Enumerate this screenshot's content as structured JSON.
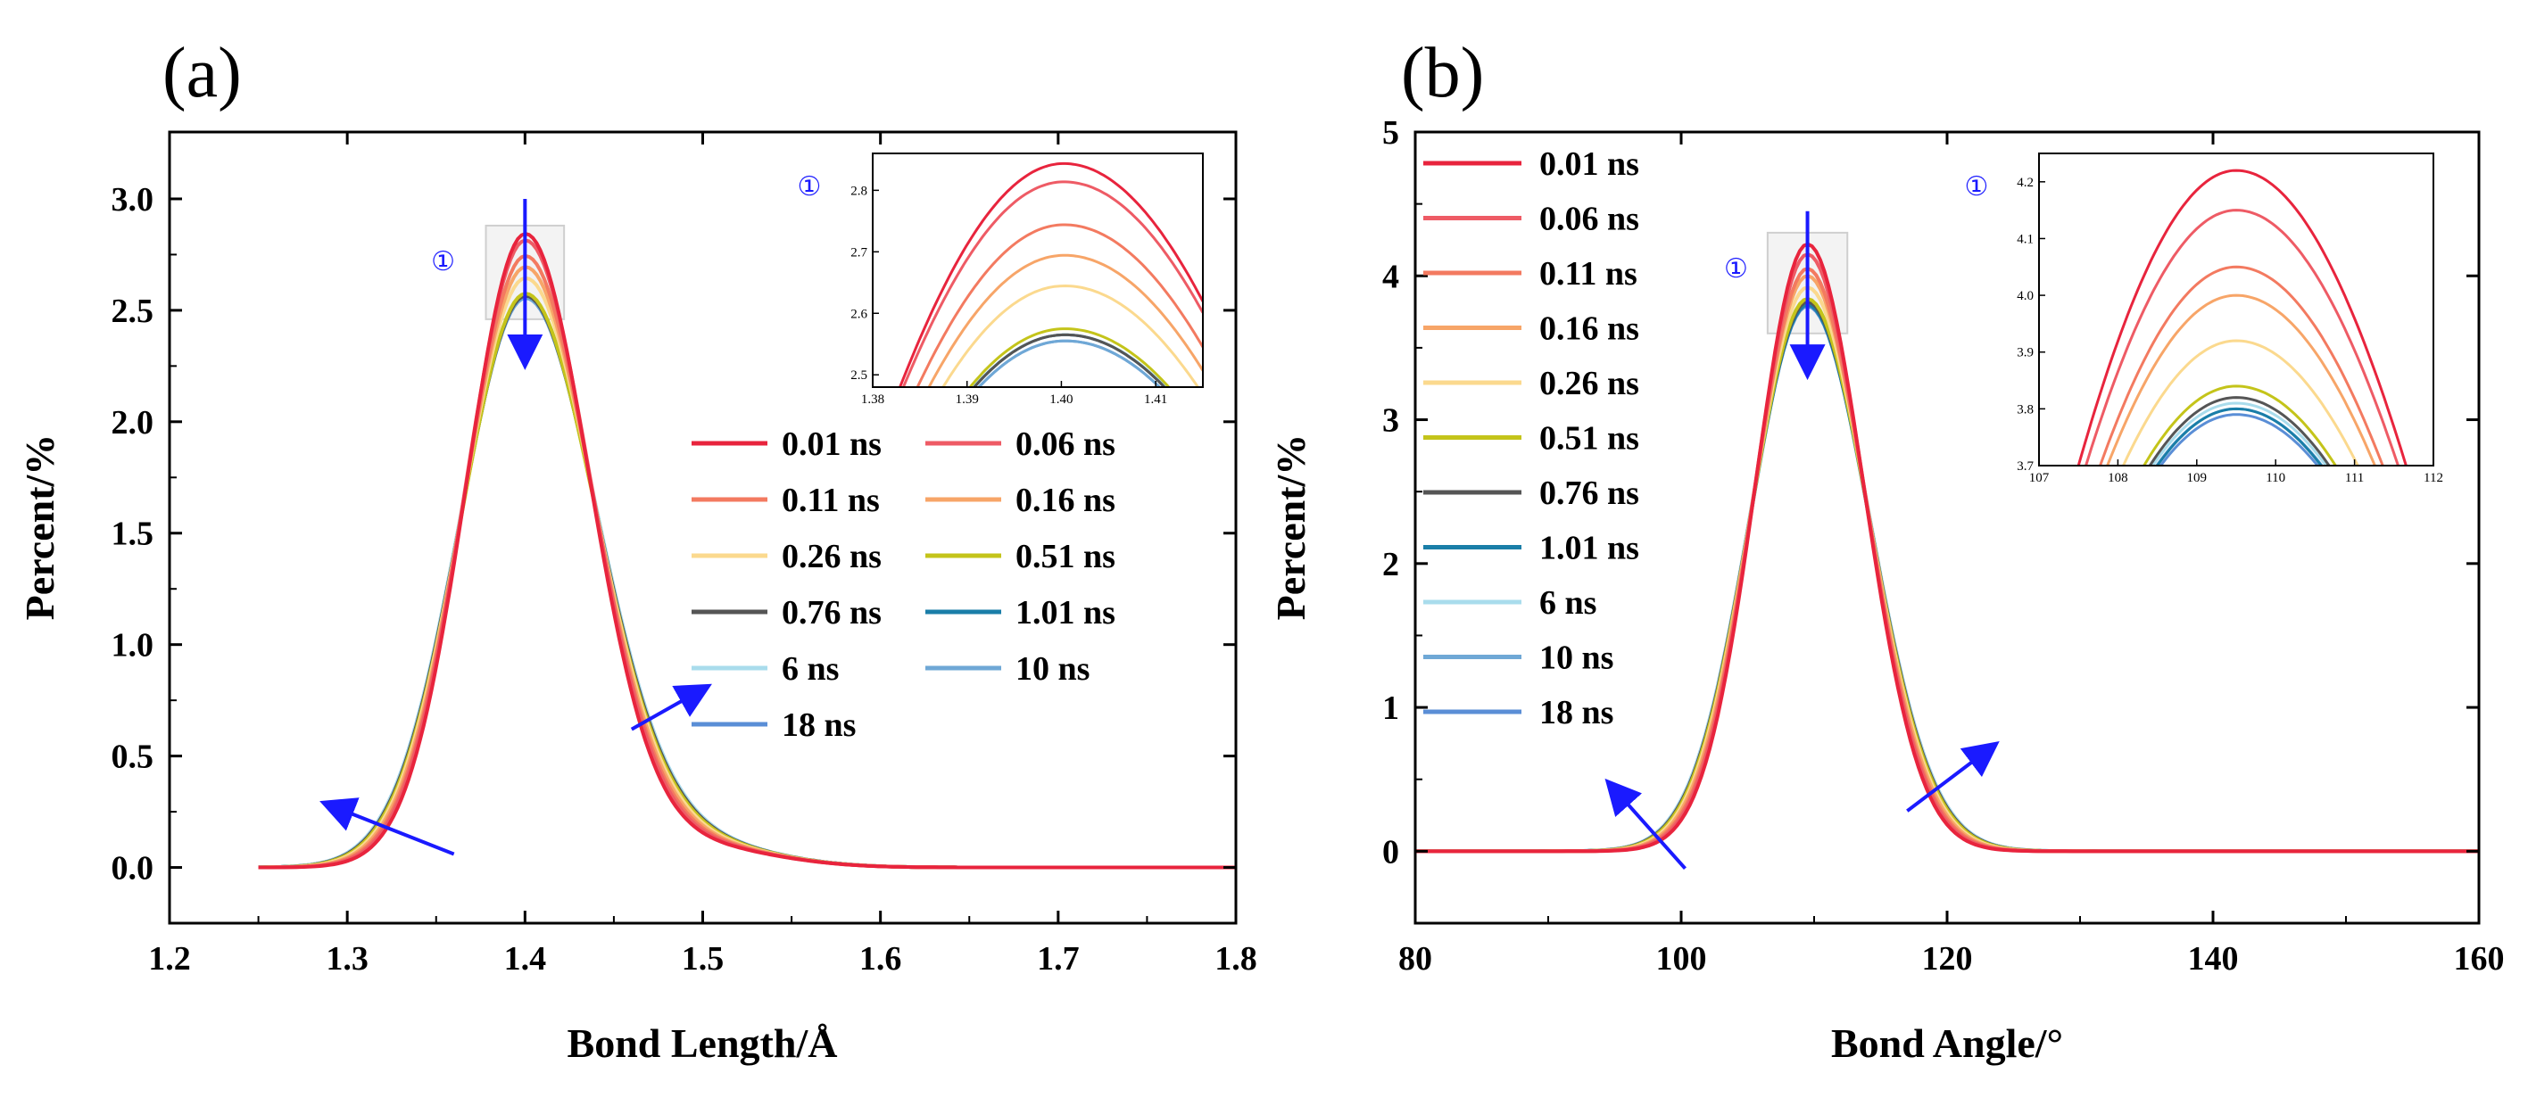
{
  "colors": {
    "arrow": "#1a1aff",
    "highlight": "#cfcfcf"
  },
  "marker_symbol": "①",
  "chart_data": [
    {
      "id": "a",
      "panel_label": "(a)",
      "type": "line",
      "xlabel": "Bond Length/Å",
      "ylabel": "Percent/%",
      "xlim": [
        1.2,
        1.8
      ],
      "ylim": [
        -0.25,
        3.3
      ],
      "xticks": [
        1.2,
        1.3,
        1.4,
        1.5,
        1.6,
        1.7,
        1.8
      ],
      "yticks": [
        0.0,
        0.5,
        1.0,
        1.5,
        2.0,
        2.5,
        3.0
      ],
      "xtick_labels": [
        "1.2",
        "1.3",
        "1.4",
        "1.5",
        "1.6",
        "1.7",
        "1.8"
      ],
      "ytick_labels": [
        "0.0",
        "0.5",
        "1.0",
        "1.5",
        "2.0",
        "2.5",
        "3.0"
      ],
      "x_start": 1.25,
      "peak_x": 1.4,
      "sigma_left": 0.033,
      "sigma_right_base": 0.036,
      "shoulder": [
        0.45,
        1.49,
        0.045
      ],
      "legend_position": "center-right",
      "legend_columns": 2,
      "legend_order": [
        0,
        1,
        2,
        3,
        4,
        5,
        6,
        7,
        8,
        9,
        10
      ],
      "series": [
        {
          "name": "0.01 ns",
          "color": "#e8243d",
          "peak": 2.83,
          "width": 1.0
        },
        {
          "name": "0.06 ns",
          "color": "#ee5b65",
          "peak": 2.8,
          "width": 1.02
        },
        {
          "name": "0.11 ns",
          "color": "#f37a60",
          "peak": 2.73,
          "width": 1.04
        },
        {
          "name": "0.16 ns",
          "color": "#f7a568",
          "peak": 2.68,
          "width": 1.06
        },
        {
          "name": "0.26 ns",
          "color": "#fbd98e",
          "peak": 2.63,
          "width": 1.08
        },
        {
          "name": "0.51 ns",
          "color": "#c4c41a",
          "peak": 2.56,
          "width": 1.1
        },
        {
          "name": "0.76 ns",
          "color": "#555555",
          "peak": 2.55,
          "width": 1.11
        },
        {
          "name": "1.01 ns",
          "color": "#1a7ea8",
          "peak": 2.55,
          "width": 1.11
        },
        {
          "name": "6 ns",
          "color": "#a9dcec",
          "peak": 2.55,
          "width": 1.12
        },
        {
          "name": "10 ns",
          "color": "#6fa8d6",
          "peak": 2.54,
          "width": 1.12
        },
        {
          "name": "18 ns",
          "color": "#5a8ed6",
          "peak": 2.54,
          "width": 1.12
        }
      ],
      "arrows": [
        {
          "from": [
            1.4,
            3.0
          ],
          "to": [
            1.4,
            2.28
          ]
        },
        {
          "from": [
            1.36,
            0.06
          ],
          "to": [
            1.29,
            0.28
          ]
        },
        {
          "from": [
            1.46,
            0.62
          ],
          "to": [
            1.5,
            0.8
          ]
        }
      ],
      "highlight_box": {
        "x": [
          1.378,
          1.422
        ],
        "y": [
          2.46,
          2.88
        ]
      },
      "marker_at": [
        1.37,
        2.72
      ],
      "inset": {
        "xlim": [
          1.38,
          1.415
        ],
        "ylim": [
          2.48,
          2.86
        ],
        "xticks": [
          1.38,
          1.39,
          1.4,
          1.41
        ],
        "yticks": [
          2.5,
          2.6,
          2.7,
          2.8
        ],
        "xtick_labels": [
          "1.38",
          "1.39",
          "1.40",
          "1.41"
        ],
        "ytick_labels": [
          "2.5",
          "2.6",
          "2.7",
          "2.8"
        ],
        "marker_position": "left"
      }
    },
    {
      "id": "b",
      "panel_label": "(b)",
      "type": "line",
      "xlabel": "Bond Angle/°",
      "ylabel": "Percent/%",
      "xlim": [
        80,
        160
      ],
      "ylim": [
        -0.5,
        5
      ],
      "xticks": [
        80,
        100,
        120,
        140,
        160
      ],
      "yticks": [
        0,
        1,
        2,
        3,
        4,
        5
      ],
      "xtick_labels": [
        "80",
        "100",
        "120",
        "140",
        "160"
      ],
      "ytick_labels": [
        "0",
        "1",
        "2",
        "3",
        "4",
        "5"
      ],
      "x_start": 80,
      "peak_x": 109.5,
      "sigma_left": 3.9,
      "sigma_right_base": 4.2,
      "shoulder": [
        0.0,
        0,
        1
      ],
      "legend_position": "top-left",
      "legend_columns": 1,
      "legend_order": [
        0,
        1,
        2,
        3,
        4,
        5,
        6,
        7,
        8,
        9,
        10
      ],
      "series": [
        {
          "name": "0.01 ns",
          "color": "#e8243d",
          "peak": 4.22,
          "width": 1.0
        },
        {
          "name": "0.06 ns",
          "color": "#ee5b65",
          "peak": 4.15,
          "width": 1.02
        },
        {
          "name": "0.11 ns",
          "color": "#f37a60",
          "peak": 4.05,
          "width": 1.04
        },
        {
          "name": "0.16 ns",
          "color": "#f7a568",
          "peak": 4.0,
          "width": 1.06
        },
        {
          "name": "0.26 ns",
          "color": "#fbd98e",
          "peak": 3.92,
          "width": 1.08
        },
        {
          "name": "0.51 ns",
          "color": "#c4c41a",
          "peak": 3.84,
          "width": 1.1
        },
        {
          "name": "0.76 ns",
          "color": "#555555",
          "peak": 3.82,
          "width": 1.11
        },
        {
          "name": "1.01 ns",
          "color": "#1a7ea8",
          "peak": 3.8,
          "width": 1.11
        },
        {
          "name": "6 ns",
          "color": "#a9dcec",
          "peak": 3.81,
          "width": 1.12
        },
        {
          "name": "10 ns",
          "color": "#6fa8d6",
          "peak": 3.8,
          "width": 1.12
        },
        {
          "name": "18 ns",
          "color": "#5a8ed6",
          "peak": 3.79,
          "width": 1.12
        }
      ],
      "arrows": [
        {
          "from": [
            109.5,
            4.45
          ],
          "to": [
            109.5,
            3.35
          ]
        },
        {
          "from": [
            100.3,
            -0.12
          ],
          "to": [
            94.8,
            0.45
          ]
        },
        {
          "from": [
            117.0,
            0.28
          ],
          "to": [
            123.3,
            0.72
          ]
        }
      ],
      "highlight_box": {
        "x": [
          106.5,
          112.5
        ],
        "y": [
          3.6,
          4.3
        ]
      },
      "marker_at": [
        106.0,
        4.05
      ],
      "inset": {
        "xlim": [
          107,
          112
        ],
        "ylim": [
          3.7,
          4.25
        ],
        "xticks": [
          107,
          108,
          109,
          110,
          111,
          112
        ],
        "yticks": [
          3.7,
          3.8,
          3.9,
          4.0,
          4.1,
          4.2
        ],
        "xtick_labels": [
          "107",
          "108",
          "109",
          "110",
          "111",
          "112"
        ],
        "ytick_labels": [
          "3.7",
          "3.8",
          "3.9",
          "4.0",
          "4.1",
          "4.2"
        ],
        "marker_position": "left"
      }
    }
  ]
}
